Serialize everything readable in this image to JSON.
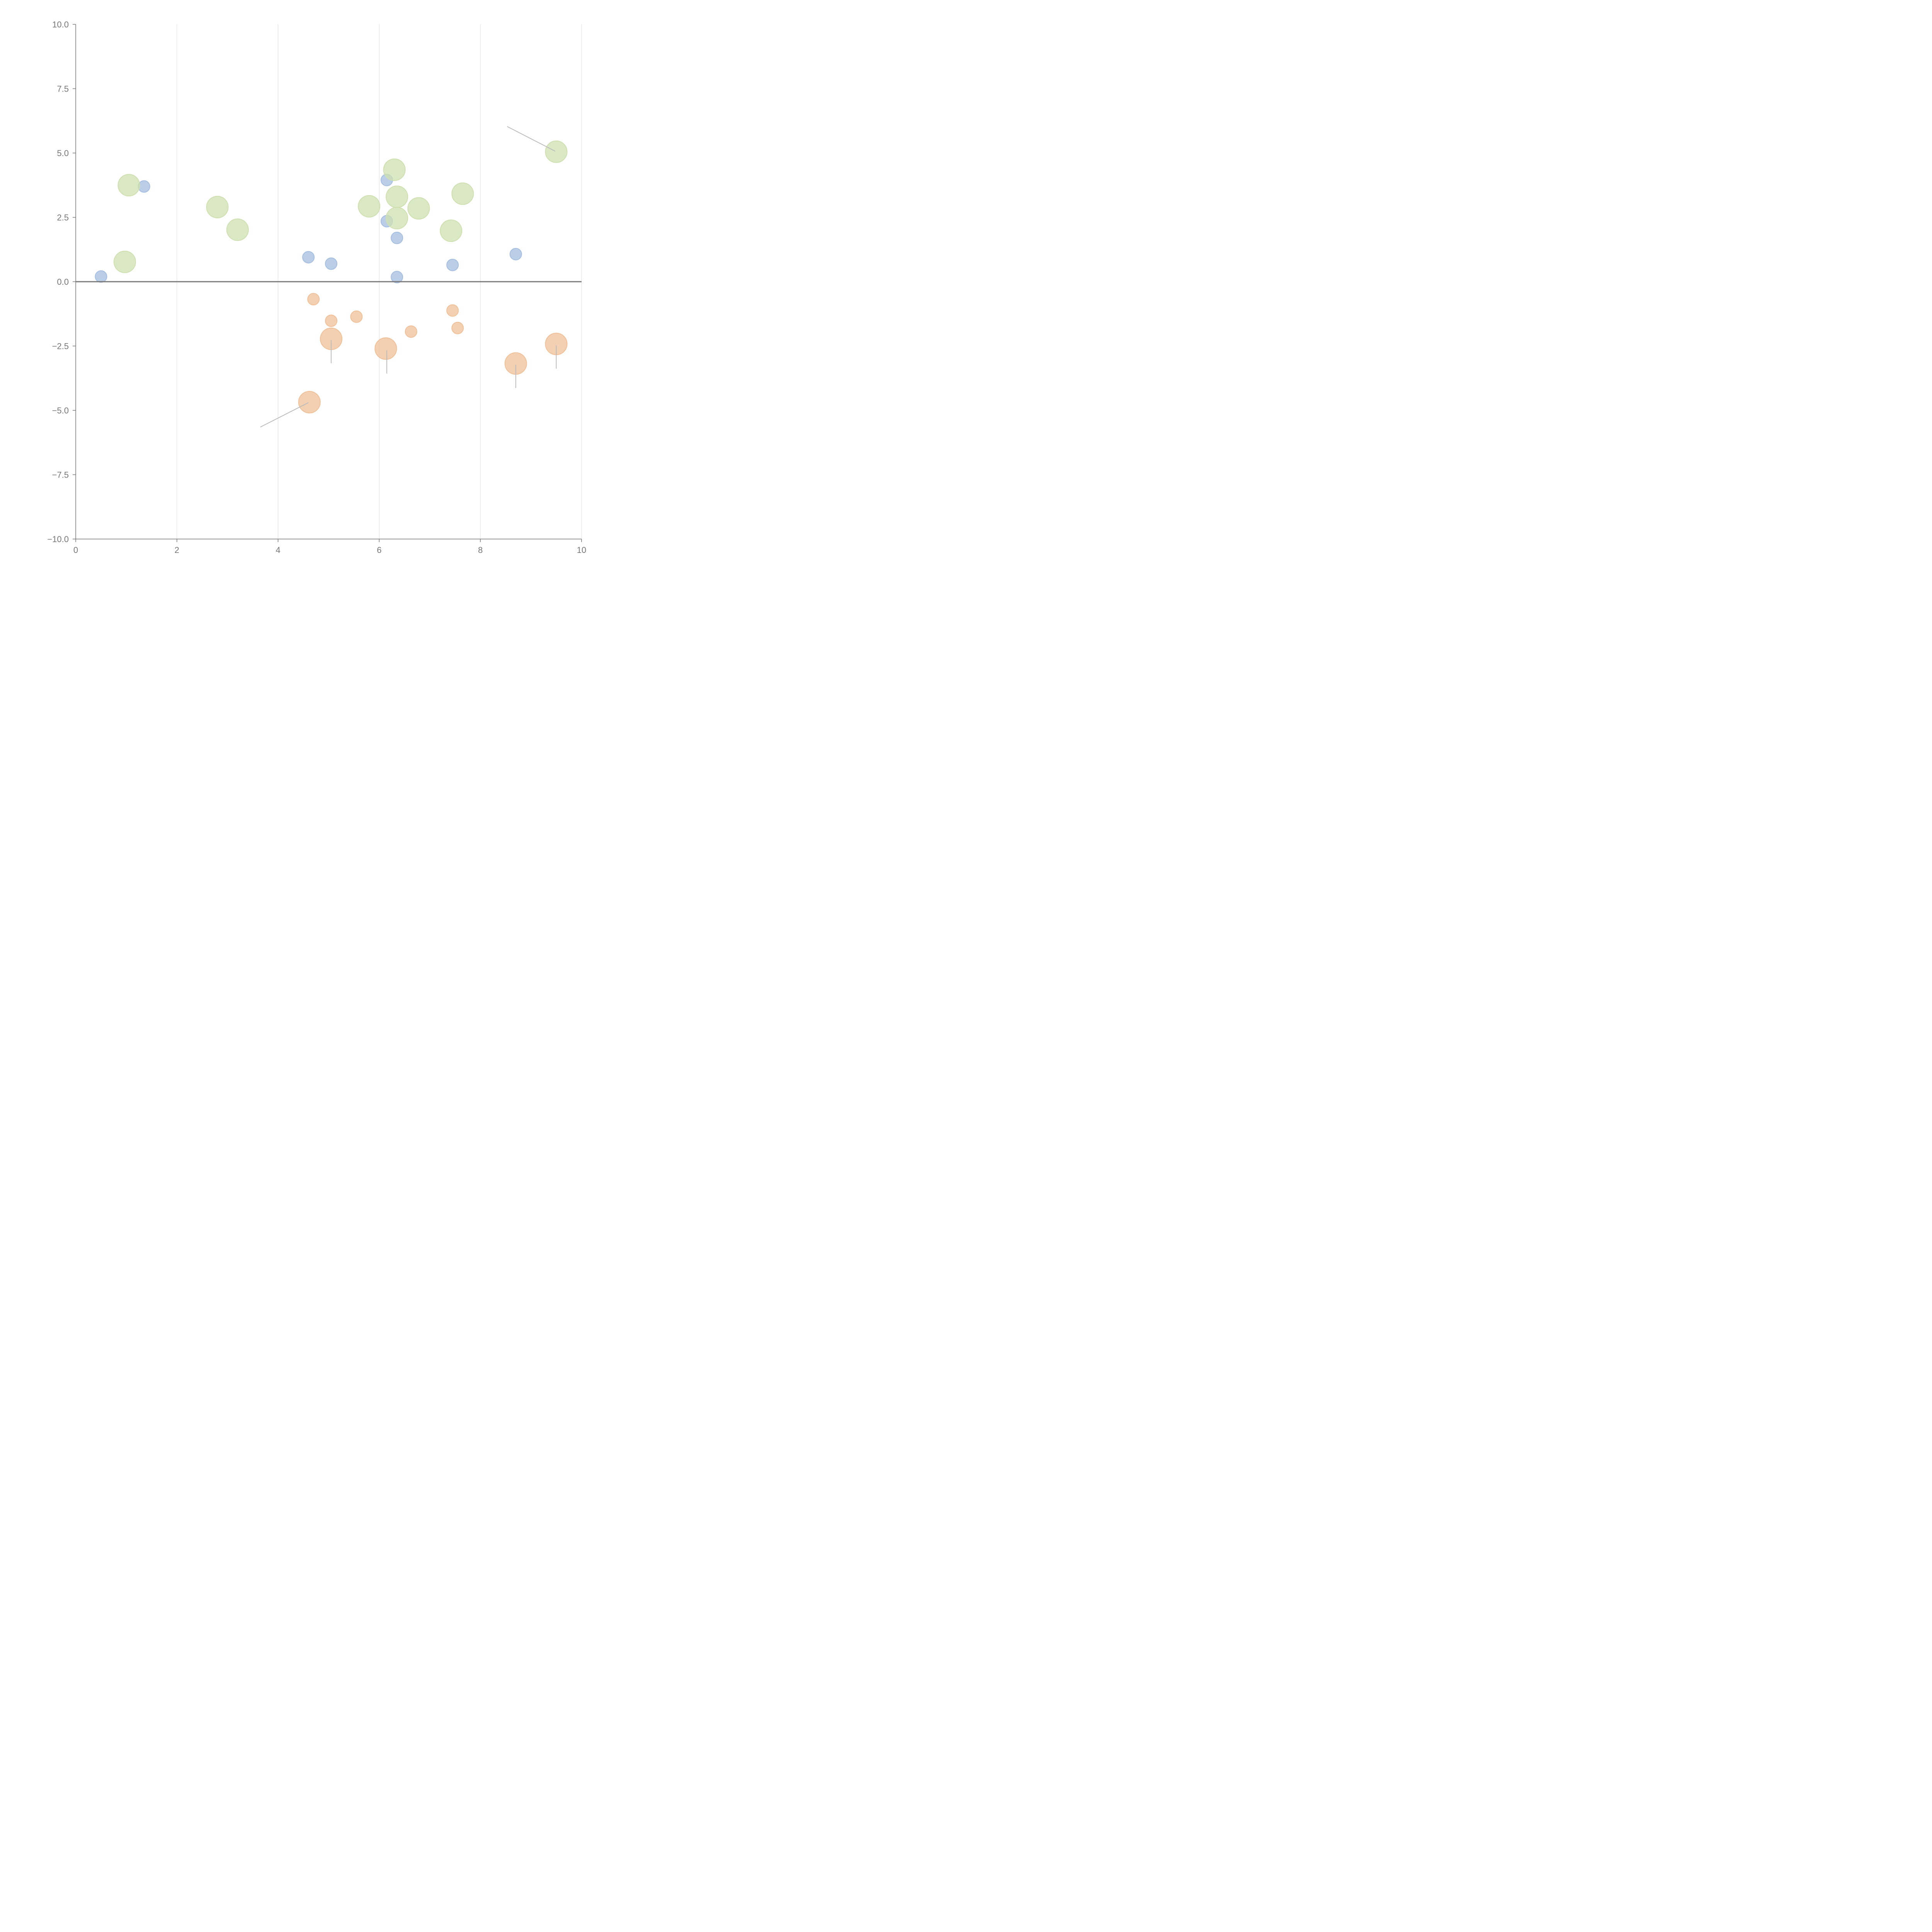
{
  "chart_data": {
    "type": "scatter",
    "title": "",
    "xlabel": "",
    "ylabel": "",
    "xlim": [
      0,
      10
    ],
    "ylim": [
      -10,
      10
    ],
    "grid": "vertical",
    "x_ticks": [
      0,
      2,
      4,
      6,
      8,
      10
    ],
    "x_tick_labels": [
      "0",
      "2",
      "4",
      "6",
      "8",
      "10"
    ],
    "y_ticks": [
      10,
      7.5,
      5,
      2.5,
      0,
      -2.5,
      -5,
      -7.5,
      -10
    ],
    "y_tick_labels": [
      "10.0",
      "7.5",
      "5.0",
      "2.5",
      "0.0",
      "−2.5",
      "−5.0",
      "−7.5",
      "−10.0"
    ],
    "reference_line_y": 0,
    "colors": {
      "blue": "#a4bde0",
      "green": "#cfe0b0",
      "orange": "#f0c098",
      "axis": "#777777",
      "grid": "#dddddd",
      "connector": "#bbbbbb"
    },
    "series": [
      {
        "name": "blue",
        "color_key": "blue",
        "size": "small",
        "points": [
          {
            "x": 0.5,
            "y": 0.2
          },
          {
            "x": 1.35,
            "y": 3.7
          },
          {
            "x": 4.6,
            "y": 0.95
          },
          {
            "x": 5.05,
            "y": 0.7
          },
          {
            "x": 6.15,
            "y": 3.95
          },
          {
            "x": 6.15,
            "y": 2.35
          },
          {
            "x": 6.35,
            "y": 1.7
          },
          {
            "x": 6.35,
            "y": 0.18
          },
          {
            "x": 7.45,
            "y": 0.65
          },
          {
            "x": 8.7,
            "y": 1.07
          }
        ]
      },
      {
        "name": "green",
        "color_key": "green",
        "size": "large",
        "points": [
          {
            "x": 0.97,
            "y": 0.77
          },
          {
            "x": 1.05,
            "y": 3.75
          },
          {
            "x": 2.8,
            "y": 2.9
          },
          {
            "x": 3.2,
            "y": 2.02
          },
          {
            "x": 5.8,
            "y": 2.93
          },
          {
            "x": 6.3,
            "y": 4.35
          },
          {
            "x": 6.35,
            "y": 3.3
          },
          {
            "x": 6.35,
            "y": 2.47
          },
          {
            "x": 6.78,
            "y": 2.85
          },
          {
            "x": 7.42,
            "y": 1.98
          },
          {
            "x": 7.65,
            "y": 3.42
          },
          {
            "x": 9.5,
            "y": 5.05
          }
        ]
      },
      {
        "name": "orange-small",
        "color_key": "orange",
        "size": "small",
        "points": [
          {
            "x": 4.7,
            "y": -0.68
          },
          {
            "x": 5.05,
            "y": -1.52
          },
          {
            "x": 5.55,
            "y": -1.36
          },
          {
            "x": 6.63,
            "y": -1.94
          },
          {
            "x": 7.45,
            "y": -1.12
          },
          {
            "x": 7.55,
            "y": -1.8
          }
        ]
      },
      {
        "name": "orange-large",
        "color_key": "orange",
        "size": "large",
        "points": [
          {
            "x": 4.62,
            "y": -4.68
          },
          {
            "x": 5.05,
            "y": -2.22
          },
          {
            "x": 6.13,
            "y": -2.6
          },
          {
            "x": 8.7,
            "y": -3.18
          },
          {
            "x": 9.5,
            "y": -2.42
          }
        ]
      }
    ],
    "connectors": [
      {
        "from": [
          8.53,
          6.03
        ],
        "to": [
          9.48,
          5.07
        ]
      },
      {
        "from": [
          3.65,
          -5.65
        ],
        "to": [
          4.6,
          -4.7
        ]
      },
      {
        "from": [
          5.05,
          -2.27
        ],
        "to": [
          5.05,
          -3.17
        ]
      },
      {
        "from": [
          6.15,
          -2.67
        ],
        "to": [
          6.15,
          -3.57
        ]
      },
      {
        "from": [
          8.7,
          -3.23
        ],
        "to": [
          8.7,
          -4.13
        ]
      },
      {
        "from": [
          9.5,
          -2.48
        ],
        "to": [
          9.5,
          -3.38
        ]
      }
    ]
  }
}
